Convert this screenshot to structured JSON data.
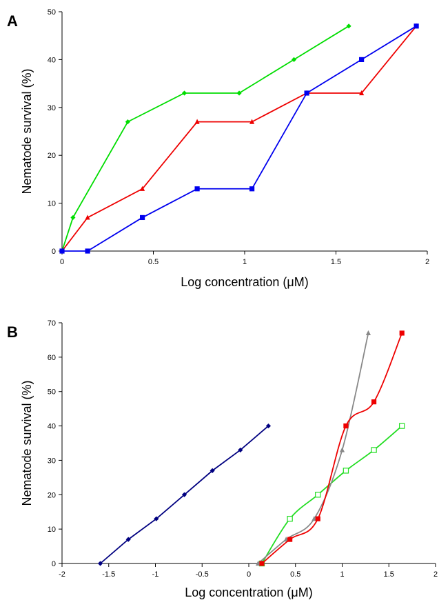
{
  "chart_data": [
    {
      "type": "line",
      "panel_label": "A",
      "xlabel": "Log concentration (μM)",
      "ylabel": "Nematode survival (%)",
      "xlim": [
        0,
        2
      ],
      "ylim": [
        0,
        50
      ],
      "xticks": [
        "0",
        "0.5",
        "1",
        "1.5",
        "2"
      ],
      "yticks": [
        "0",
        "10",
        "20",
        "30",
        "40",
        "50"
      ],
      "grid": false,
      "series": [
        {
          "color": "#00dd00",
          "marker": "diamond",
          "smooth": false,
          "x": [
            0,
            0.06,
            0.36,
            0.67,
            0.97,
            1.27,
            1.57
          ],
          "y": [
            0,
            7,
            27,
            33,
            33,
            40,
            47
          ]
        },
        {
          "color": "#ee0000",
          "marker": "triangle",
          "smooth": false,
          "x": [
            0,
            0.14,
            0.44,
            0.74,
            1.04,
            1.34,
            1.64,
            1.94
          ],
          "y": [
            0,
            7,
            13,
            27,
            27,
            33,
            33,
            47
          ]
        },
        {
          "color": "#0000ee",
          "marker": "square",
          "smooth": false,
          "x": [
            0,
            0.14,
            0.44,
            0.74,
            1.04,
            1.34,
            1.64,
            1.94
          ],
          "y": [
            0,
            0,
            7,
            13,
            13,
            33,
            40,
            47
          ]
        }
      ]
    },
    {
      "type": "line",
      "panel_label": "B",
      "xlabel": "Log concentration (μM)",
      "ylabel": "Nematode survival (%)",
      "xlim": [
        -2,
        2
      ],
      "ylim": [
        0,
        70
      ],
      "xticks": [
        "-2",
        "-1.5",
        "-1",
        "-0.5",
        "0",
        "0.5",
        "1",
        "1.5",
        "2"
      ],
      "yticks": [
        "0",
        "10",
        "20",
        "30",
        "40",
        "50",
        "60",
        "70"
      ],
      "grid": false,
      "series": [
        {
          "color": "#000080",
          "marker": "diamond",
          "smooth": false,
          "x": [
            -1.59,
            -1.29,
            -0.99,
            -0.69,
            -0.39,
            -0.09,
            0.21
          ],
          "y": [
            0,
            7,
            13,
            20,
            27,
            33,
            40
          ]
        },
        {
          "color": "#22dd22",
          "marker": "open-square",
          "smooth": true,
          "x": [
            0.14,
            0.44,
            0.74,
            1.04,
            1.34,
            1.64
          ],
          "y": [
            0,
            13,
            20,
            27,
            33,
            40
          ]
        },
        {
          "color": "#888888",
          "marker": "triangle",
          "smooth": true,
          "x": [
            0.1,
            0.4,
            0.7,
            1.0,
            1.28
          ],
          "y": [
            0,
            7,
            13,
            33,
            67
          ]
        },
        {
          "color": "#ee0000",
          "marker": "square",
          "smooth": true,
          "x": [
            0.14,
            0.44,
            0.74,
            1.04,
            1.34,
            1.64
          ],
          "y": [
            0,
            7,
            13,
            40,
            47,
            67
          ]
        }
      ]
    }
  ]
}
